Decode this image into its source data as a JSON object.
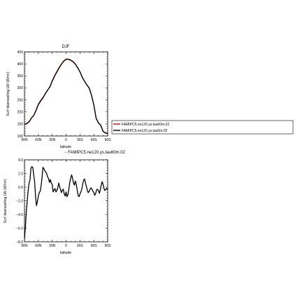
{
  "chart_data": [
    {
      "type": "line",
      "title": "DJF",
      "xlabel": "latitude",
      "ylabel": "Surf downwelling LW (W/m²)",
      "xlim": [
        -90,
        90
      ],
      "ylim": [
        100,
        450
      ],
      "x_ticks": [
        {
          "value": -90,
          "label": "90N"
        },
        {
          "value": -60,
          "label": "60N"
        },
        {
          "value": -30,
          "label": "30N"
        },
        {
          "value": 0,
          "label": "0"
        },
        {
          "value": 30,
          "label": "30S"
        },
        {
          "value": 60,
          "label": "60S"
        },
        {
          "value": 90,
          "label": "90S"
        }
      ],
      "y_ticks": [
        {
          "value": 100,
          "label": "100"
        },
        {
          "value": 150,
          "label": "150"
        },
        {
          "value": 200,
          "label": "200"
        },
        {
          "value": 250,
          "label": "250"
        },
        {
          "value": 300,
          "label": "300"
        },
        {
          "value": 350,
          "label": "350"
        },
        {
          "value": 400,
          "label": "400"
        },
        {
          "value": 450,
          "label": "450"
        }
      ],
      "legend_position": "right",
      "series": [
        {
          "name": "FAMIPC5.ne120.ys.tau60m.02",
          "color": "#cc0000",
          "x": [
            -90,
            -85,
            -80,
            -75,
            -70,
            -65,
            -60,
            -55,
            -50,
            -45,
            -40,
            -35,
            -30,
            -25,
            -20,
            -15,
            -10,
            -5,
            0,
            5,
            10,
            15,
            20,
            25,
            30,
            35,
            40,
            45,
            50,
            55,
            60,
            65,
            70,
            75,
            80,
            85,
            90
          ],
          "y": [
            150,
            152,
            160,
            175,
            185,
            205,
            230,
            245,
            258,
            275,
            290,
            305,
            330,
            350,
            368,
            385,
            400,
            412,
            420,
            420,
            416,
            410,
            400,
            385,
            368,
            345,
            328,
            313,
            300,
            270,
            230,
            175,
            155,
            145,
            120,
            113,
            112
          ]
        },
        {
          "name": "FAMIPC5.ne120.ys.tau5m.02",
          "color": "#000000",
          "x": [
            -90,
            -85,
            -80,
            -75,
            -70,
            -65,
            -60,
            -55,
            -50,
            -45,
            -40,
            -35,
            -30,
            -25,
            -20,
            -15,
            -10,
            -5,
            0,
            5,
            10,
            15,
            20,
            25,
            30,
            35,
            40,
            45,
            50,
            55,
            60,
            65,
            70,
            75,
            80,
            85,
            90
          ],
          "y": [
            148,
            151,
            159,
            174,
            186,
            207,
            232,
            247,
            260,
            276,
            291,
            304,
            328,
            348,
            366,
            383,
            399,
            411,
            419,
            419,
            415,
            409,
            399,
            384,
            367,
            344,
            327,
            312,
            299,
            269,
            229,
            173,
            154,
            144,
            119,
            112,
            111
          ]
        }
      ],
      "legend": [
        "FAMIPC5.ne120.ys.tau60m.02",
        "FAMIPC5.ne120.ys.tau5m.02"
      ]
    },
    {
      "type": "line",
      "title": "− FAMIPC5.ne120.ys.tau60m.02",
      "xlabel": "latitude",
      "ylabel": "Surf downwelling LW (W/m²)",
      "xlim": [
        -90,
        90
      ],
      "ylim": [
        -8,
        4
      ],
      "x_ticks": [
        {
          "value": -90,
          "label": "90N"
        },
        {
          "value": -60,
          "label": "60N"
        },
        {
          "value": -30,
          "label": "30N"
        },
        {
          "value": 0,
          "label": "0"
        },
        {
          "value": 30,
          "label": "30S"
        },
        {
          "value": 60,
          "label": "60S"
        },
        {
          "value": 90,
          "label": "90S"
        }
      ],
      "y_ticks": [
        {
          "value": -8,
          "label": "−8.0"
        },
        {
          "value": -6,
          "label": "−6.0"
        },
        {
          "value": -4,
          "label": "−4.0"
        },
        {
          "value": -2,
          "label": "−2.0"
        },
        {
          "value": 0,
          "label": "0.0"
        },
        {
          "value": 2,
          "label": "2.0"
        },
        {
          "value": 4,
          "label": "4.0"
        }
      ],
      "series": [
        {
          "color": "#000000",
          "x": [
            -90,
            -88,
            -86,
            -84,
            -82,
            -80,
            -78,
            -76,
            -74,
            -72,
            -70,
            -68,
            -66,
            -64,
            -62,
            -60,
            -58,
            -56,
            -54,
            -52,
            -50,
            -48,
            -46,
            -44,
            -42,
            -40,
            -38,
            -36,
            -34,
            -32,
            -30,
            -28,
            -26,
            -24,
            -22,
            -20,
            -18,
            -16,
            -14,
            -12,
            -10,
            -8,
            -6,
            -4,
            -2,
            0,
            2,
            4,
            6,
            8,
            10,
            12,
            14,
            16,
            18,
            20,
            22,
            24,
            26,
            28,
            30,
            32,
            34,
            36,
            38,
            40,
            42,
            44,
            46,
            48,
            50,
            52,
            54,
            56,
            58,
            60,
            62,
            64,
            66,
            68,
            70,
            72,
            74,
            76,
            78,
            80,
            82,
            84,
            86,
            88,
            90
          ],
          "y": [
            -7.5,
            -5.8,
            -3.6,
            -2.0,
            -0.4,
            0.6,
            1.1,
            2.8,
            3.0,
            2.9,
            1.8,
            0.8,
            -1.4,
            -2.7,
            -2.1,
            -1.3,
            -0.8,
            -0.6,
            0.2,
            1.4,
            2.9,
            2.7,
            2.4,
            2.2,
            2.0,
            1.5,
            1.3,
            0.7,
            1.1,
            0.6,
            0.4,
            -0.7,
            -0.4,
            -0.2,
            -0.7,
            -0.5,
            -0.1,
            0.6,
            0.1,
            -0.4,
            -0.8,
            -0.4,
            -0.3,
            -1.0,
            -1.3,
            -0.7,
            -1.4,
            -1.1,
            -0.3,
            0.7,
            1.3,
            1.8,
            1.3,
            0.6,
            0.3,
            0.9,
            0.4,
            -0.4,
            -1.2,
            -1.4,
            -1.0,
            -0.7,
            -0.3,
            0.5,
            1.0,
            1.2,
            0.6,
            0.1,
            -0.5,
            -0.8,
            -0.6,
            -0.3,
            -0.1,
            -0.3,
            -0.6,
            -0.8,
            -1.2,
            -0.9,
            -0.4,
            -0.3,
            -0.5,
            -0.9,
            -0.4,
            0.3,
            0.8,
            0.4,
            -0.2,
            -0.5,
            -0.3,
            -0.2,
            -0.4
          ]
        }
      ]
    }
  ]
}
